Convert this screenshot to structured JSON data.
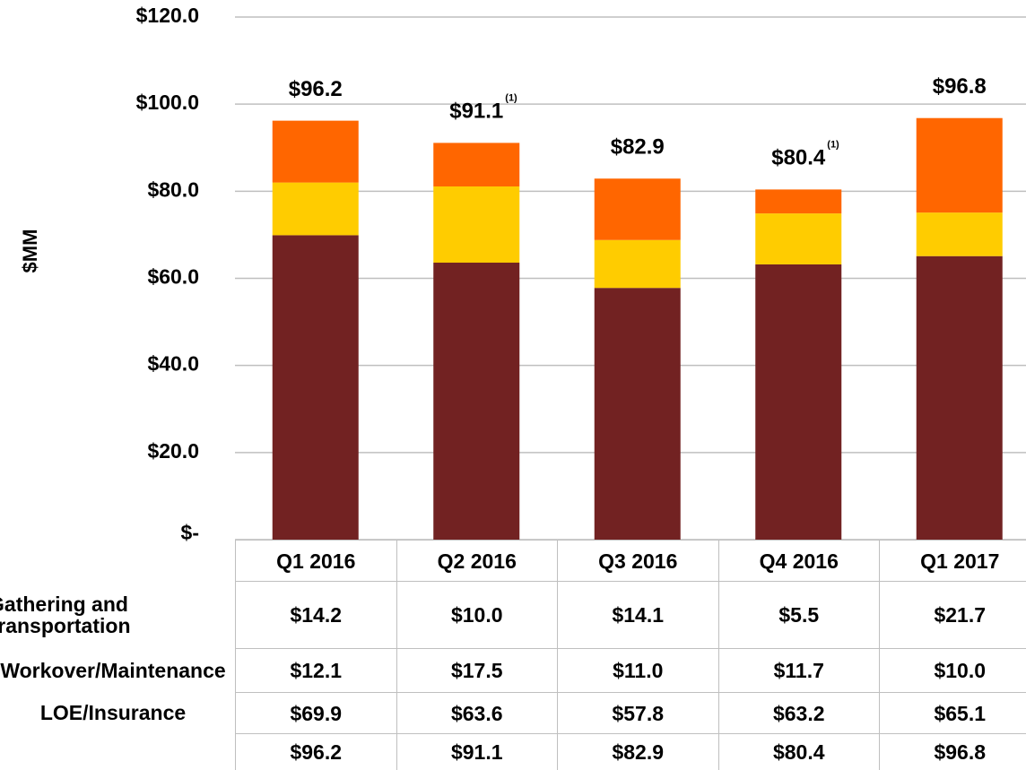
{
  "chart_data": {
    "type": "stacked_bar",
    "y_label": "$MM",
    "categories": [
      "Q1 2016",
      "Q2 2016",
      "Q3 2016",
      "Q4 2016",
      "Q1 2017"
    ],
    "series": [
      {
        "name": "Gathering and Transportation",
        "color": "#ff6600",
        "values": [
          14.2,
          10.0,
          14.1,
          5.5,
          21.7
        ],
        "value_labels": [
          "$14.2",
          "$10.0",
          "$14.1",
          "$5.5",
          "$21.7"
        ]
      },
      {
        "name": "Workover/Maintenance",
        "color": "#ffcc00",
        "values": [
          12.1,
          17.5,
          11.0,
          11.7,
          10.0
        ],
        "value_labels": [
          "$12.1",
          "$17.5",
          "$11.0",
          "$11.7",
          "$10.0"
        ]
      },
      {
        "name": "LOE/Insurance",
        "color": "#722222",
        "values": [
          69.9,
          63.6,
          57.8,
          63.2,
          65.1
        ],
        "value_labels": [
          "$69.9",
          "$63.6",
          "$57.8",
          "$63.2",
          "$65.1"
        ]
      }
    ],
    "totals": [
      96.2,
      91.1,
      82.9,
      80.4,
      96.8
    ],
    "total_labels": [
      "$96.2",
      "$91.1",
      "$82.9",
      "$80.4",
      "$96.8"
    ],
    "footnotes": [
      null,
      "(1)",
      null,
      "(1)",
      null
    ],
    "ylim": [
      0,
      120
    ],
    "yticks": [
      {
        "value": 0,
        "label": "$-"
      },
      {
        "value": 20,
        "label": "$20.0"
      },
      {
        "value": 40,
        "label": "$40.0"
      },
      {
        "value": 60,
        "label": "$60.0"
      },
      {
        "value": 80,
        "label": "$80.0"
      },
      {
        "value": 100,
        "label": "$100.0"
      },
      {
        "value": 120,
        "label": "$120.0"
      }
    ],
    "grid": true
  }
}
